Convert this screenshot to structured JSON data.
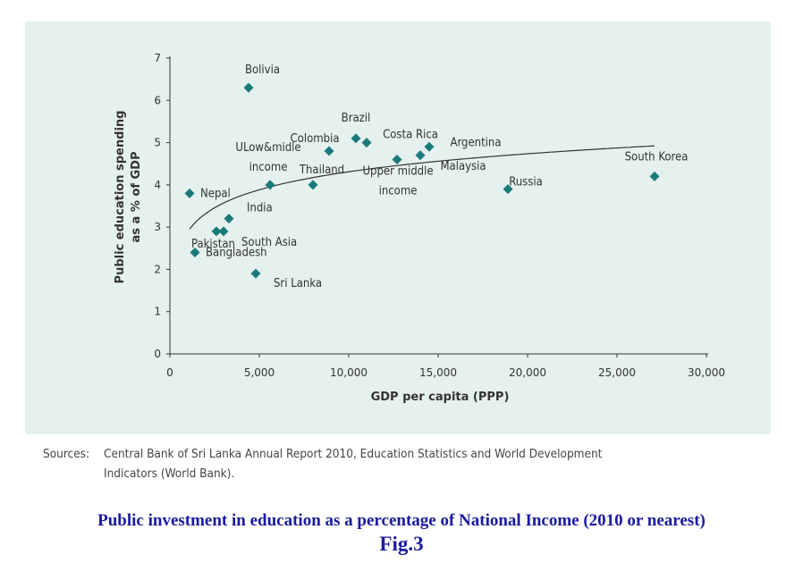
{
  "chart_data": {
    "type": "scatter",
    "xlabel": "GDP per capita (PPP)",
    "ylabel": "Public education spending as a % of GDP",
    "xlim": [
      0,
      30000
    ],
    "ylim": [
      0,
      7
    ],
    "x_ticks": [
      "0",
      "5,000",
      "10,000",
      "15,000",
      "20,000",
      "25,000",
      "30,000"
    ],
    "y_ticks": [
      "0",
      "1",
      "2",
      "3",
      "4",
      "5",
      "6",
      "7"
    ],
    "points": [
      {
        "label": "Bolivia",
        "x": 4400,
        "y": 6.3
      },
      {
        "label": "Nepal",
        "x": 1100,
        "y": 3.8
      },
      {
        "label": "Pakistan",
        "x": 2600,
        "y": 2.9
      },
      {
        "label": "South Asia",
        "x": 3000,
        "y": 2.9
      },
      {
        "label": "India",
        "x": 3300,
        "y": 3.2
      },
      {
        "label": "Bangladesh",
        "x": 1400,
        "y": 2.4
      },
      {
        "label": "Sri Lanka",
        "x": 4800,
        "y": 1.9
      },
      {
        "label": "ULow&midle income",
        "x": 5600,
        "y": 4.0
      },
      {
        "label": "Thailand",
        "x": 8000,
        "y": 4.0
      },
      {
        "label": "Colombia",
        "x": 8900,
        "y": 4.8
      },
      {
        "label": "Brazil",
        "x": 10400,
        "y": 5.1
      },
      {
        "label": "Upper middle income",
        "x": 11000,
        "y": 5.0
      },
      {
        "label": "Costa Rica",
        "x": 12700,
        "y": 4.6
      },
      {
        "label": "Malaysia",
        "x": 14000,
        "y": 4.7
      },
      {
        "label": "Argentina",
        "x": 14500,
        "y": 4.9
      },
      {
        "label": "Russia",
        "x": 18900,
        "y": 3.9
      },
      {
        "label": "South Korea",
        "x": 27100,
        "y": 4.2
      }
    ],
    "trendline": {
      "type": "logarithmic"
    },
    "highlight_color": "#cc1f8a",
    "marker_color": "#1a7a7a"
  },
  "sources": {
    "label": "Sources:",
    "text": "Central Bank of Sri Lanka Annual Report 2010, Education Statistics and World Development Indicators (World Bank)."
  },
  "caption": {
    "title": "Public investment in education as a percentage of National Income (2010 or nearest)",
    "fig": "Fig.3"
  }
}
